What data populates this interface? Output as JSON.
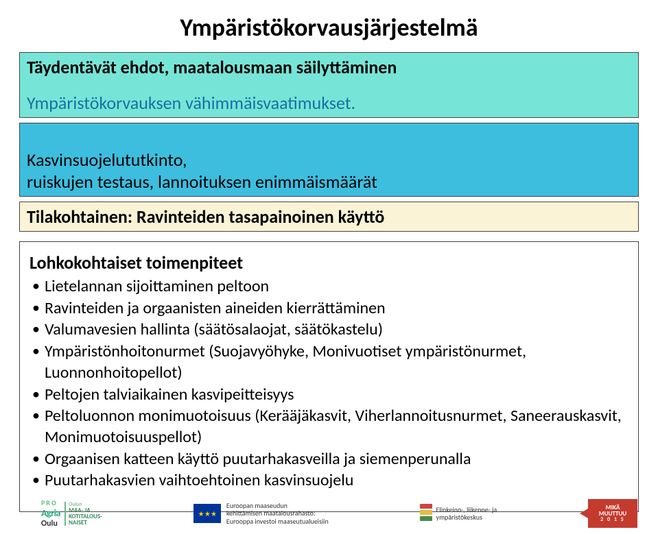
{
  "title": "Ympäristökorvausjärjestelmä",
  "box1": {
    "heading": "Täydentävät ehdot, maatalousmaan säilyttäminen",
    "sub": "Ympäristökorvauksen vähimmäisvaatimukset.",
    "sub2": "Kasvinsuojelututkinto,\nruiskujen testaus, lannoituksen enimmäismäärät"
  },
  "box2": "Tilakohtainen: Ravinteiden tasapainoinen käyttö",
  "box3": {
    "heading": "Lohkokohtaiset toimenpiteet",
    "items": [
      "Lietelannan sijoittaminen peltoon",
      "Ravinteiden ja orgaanisten aineiden kierrättäminen",
      "Valumavesien hallinta (säätösalaojat, säätökastelu)",
      "Ympäristönhoitonurmet (Suojavyöhyke, Monivuotiset ympäristönurmet, Luonnonhoitopellot)",
      "Peltojen talviaikainen kasvipeitteisyys",
      "Peltoluonnon monimuotoisuus (Kerääjäkasvit, Viherlannoitusnurmet, Saneerauskasvit, Monimuotoisuuspellot)",
      "Orgaanisen katteen käyttö puutarhakasveilla ja siemenperunalla",
      "Puutarhakasvien vaihtoehtoinen kasvinsuojelu"
    ]
  },
  "footer": {
    "proagria_top": "P R O",
    "proagria_name": "Agria",
    "proagria_oulu": "Oulu",
    "mkn_oulun": "Oulun",
    "mkn_maa": "MAA- JA\nKOTITALOUS-\nNAISET",
    "eu_text": "Euroopan maaseudun\nkehittämisen maatalousrahasto:\nEurooppa investoi maaseutualueisiin",
    "ely_text": "Elinkeino-, liikenne- ja\nympäristökeskus",
    "mika_l1": "MIKÄ",
    "mika_l2": "MUUTTUU",
    "mika_yr": "2 0 1 5"
  },
  "colors": {
    "teal": "#76e5d7",
    "blue": "#3dbedf",
    "cream": "#faf3d5",
    "blue_text": "#1a6fa3",
    "mika_red": "#c43b2e",
    "eu_blue": "#003399",
    "eu_gold": "#ffcc00"
  }
}
